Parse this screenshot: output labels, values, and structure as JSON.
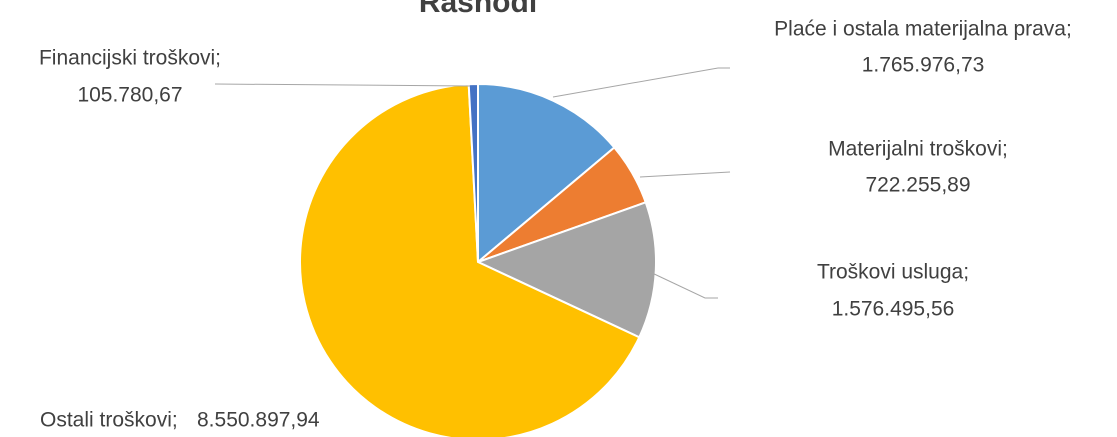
{
  "chart_data": {
    "type": "pie",
    "title": "Rashodi",
    "categories": [
      "Plaće i ostala materijalna prava;",
      "Materijalni troškovi;",
      "Troškovi usluga;",
      "Ostali troškovi;",
      "Financijski troškovi;"
    ],
    "values": [
      1765976.73,
      722255.89,
      1576495.56,
      8550897.94,
      105780.67
    ],
    "value_labels": [
      "1.765.976,73",
      "722.255,89",
      "1.576.495,56",
      "8.550.897,94",
      "105.780,67"
    ],
    "colors": [
      "#5b9bd5",
      "#ed7d31",
      "#a5a5a5",
      "#ffc000",
      "#4472c4"
    ]
  }
}
